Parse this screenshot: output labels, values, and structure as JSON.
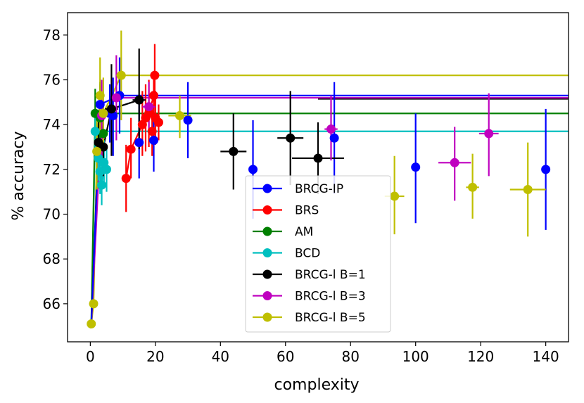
{
  "chart_data": {
    "type": "line",
    "title": "",
    "xlabel": "complexity",
    "ylabel": "% accuracy",
    "xlim": [
      -7,
      147
    ],
    "ylim": [
      64.3,
      79
    ],
    "xticks": [
      0,
      20,
      40,
      60,
      80,
      100,
      120,
      140
    ],
    "yticks": [
      66,
      68,
      70,
      72,
      74,
      76,
      78
    ],
    "grid": false,
    "legend_position": "lower-center",
    "series": [
      {
        "name": "BRCG-IP",
        "color": "#0000ff",
        "points": [
          {
            "x": 3,
            "y": 74.9,
            "ylo": 74.0,
            "yhi": 75.8,
            "xlo": 3,
            "xhi": 3
          },
          {
            "x": 6,
            "y": 74.5,
            "ylo": 73.2,
            "yhi": 75.8,
            "xlo": 6,
            "xhi": 6
          },
          {
            "x": 7,
            "y": 74.4,
            "ylo": 72.6,
            "yhi": 76.1,
            "xlo": 6,
            "xhi": 8
          },
          {
            "x": 9,
            "y": 75.3,
            "ylo": 73.6,
            "yhi": 77.0,
            "xlo": 9,
            "xhi": 9
          },
          {
            "x": 15,
            "y": 73.2,
            "ylo": 71.6,
            "yhi": 74.9,
            "xlo": 15,
            "xhi": 15
          },
          {
            "x": 19.5,
            "y": 73.3,
            "ylo": 71.9,
            "yhi": 74.8,
            "xlo": 18.5,
            "xhi": 20.5
          },
          {
            "x": 30,
            "y": 74.2,
            "ylo": 72.5,
            "yhi": 75.9,
            "xlo": 29,
            "xhi": 31
          },
          {
            "x": 50,
            "y": 72.0,
            "ylo": 69.8,
            "yhi": 74.2,
            "xlo": 49,
            "xhi": 51
          },
          {
            "x": 75,
            "y": 73.4,
            "ylo": 70.9,
            "yhi": 75.9,
            "xlo": 74,
            "xhi": 76
          },
          {
            "x": 100,
            "y": 72.1,
            "ylo": 69.6,
            "yhi": 74.5,
            "xlo": 99,
            "xhi": 101
          },
          {
            "x": 140,
            "y": 72.0,
            "ylo": 69.3,
            "yhi": 74.7,
            "xlo": 139,
            "xhi": 141
          }
        ],
        "asymptote": 75.3
      },
      {
        "name": "BRS",
        "color": "#ff0000",
        "points": [
          {
            "x": 11,
            "y": 71.6,
            "ylo": 70.1,
            "yhi": 73.1,
            "xlo": 10.5,
            "xhi": 11.5
          },
          {
            "x": 12.5,
            "y": 72.9,
            "ylo": 71.6,
            "yhi": 74.3,
            "xlo": 12,
            "xhi": 13
          },
          {
            "x": 16,
            "y": 74.0,
            "ylo": 72.6,
            "yhi": 75.5,
            "xlo": 15,
            "xhi": 17
          },
          {
            "x": 17,
            "y": 74.3,
            "ylo": 72.8,
            "yhi": 75.8,
            "xlo": 16,
            "xhi": 18
          },
          {
            "x": 18,
            "y": 74.5,
            "ylo": 73.0,
            "yhi": 76.0,
            "xlo": 17,
            "xhi": 19
          },
          {
            "x": 19,
            "y": 73.7,
            "ylo": 72.6,
            "yhi": 74.7,
            "xlo": 18,
            "xhi": 20
          },
          {
            "x": 19.5,
            "y": 75.3,
            "ylo": 74.4,
            "yhi": 76.2,
            "xlo": 18.5,
            "xhi": 20.5
          },
          {
            "x": 20,
            "y": 74.3,
            "ylo": 73.1,
            "yhi": 75.5,
            "xlo": 19,
            "xhi": 21
          },
          {
            "x": 21,
            "y": 74.1,
            "ylo": 73.3,
            "yhi": 74.9,
            "xlo": 20,
            "xhi": 22
          },
          {
            "x": 19.8,
            "y": 76.2,
            "ylo": 74.8,
            "yhi": 77.6,
            "xlo": 19,
            "xhi": 20.6
          }
        ],
        "asymptote": null
      },
      {
        "name": "AM",
        "color": "#008000",
        "points": [
          {
            "x": 1.5,
            "y": 74.5,
            "ylo": 73.3,
            "yhi": 75.6,
            "xlo": 1,
            "xhi": 2
          },
          {
            "x": 3,
            "y": 74.3,
            "ylo": 73.0,
            "yhi": 75.9,
            "xlo": 2.5,
            "xhi": 3.5
          },
          {
            "x": 4,
            "y": 73.6,
            "ylo": 72.5,
            "yhi": 74.8,
            "xlo": 3.5,
            "xhi": 4.5
          }
        ],
        "asymptote": 74.5
      },
      {
        "name": "BCD",
        "color": "#00bfbf",
        "points": [
          {
            "x": 1.5,
            "y": 73.7,
            "ylo": 72.9,
            "yhi": 74.5,
            "xlo": 1,
            "xhi": 2
          },
          {
            "x": 2.5,
            "y": 72.5,
            "ylo": 71.5,
            "yhi": 73.5,
            "xlo": 2,
            "xhi": 3
          },
          {
            "x": 3,
            "y": 71.9,
            "ylo": 70.9,
            "yhi": 72.9,
            "xlo": 2.5,
            "xhi": 3.5
          },
          {
            "x": 3.5,
            "y": 71.3,
            "ylo": 70.4,
            "yhi": 72.2,
            "xlo": 3,
            "xhi": 4
          },
          {
            "x": 4.2,
            "y": 72.3,
            "ylo": 71.2,
            "yhi": 73.3,
            "xlo": 3.7,
            "xhi": 4.7
          },
          {
            "x": 5,
            "y": 72.0,
            "ylo": 71.0,
            "yhi": 73.0,
            "xlo": 4.5,
            "xhi": 5.5
          }
        ],
        "asymptote": 73.7
      },
      {
        "name": "BRCG-l B=1",
        "color": "#000000",
        "points": [
          {
            "x": 2.5,
            "y": 73.2,
            "ylo": 72.3,
            "yhi": 74.1,
            "xlo": 2,
            "xhi": 3
          },
          {
            "x": 4,
            "y": 73.0,
            "ylo": 71.7,
            "yhi": 74.3,
            "xlo": 3.5,
            "xhi": 4.5
          },
          {
            "x": 6.5,
            "y": 74.7,
            "ylo": 72.6,
            "yhi": 76.7,
            "xlo": 4.5,
            "xhi": 8.5
          },
          {
            "x": 15,
            "y": 75.1,
            "ylo": 72.9,
            "yhi": 77.4,
            "xlo": 13,
            "xhi": 17
          },
          {
            "x": 44,
            "y": 72.8,
            "ylo": 71.1,
            "yhi": 74.5,
            "xlo": 40,
            "xhi": 48
          },
          {
            "x": 61.5,
            "y": 73.4,
            "ylo": 71.3,
            "yhi": 75.5,
            "xlo": 57.5,
            "xhi": 65.5
          },
          {
            "x": 70,
            "y": 72.5,
            "ylo": 70.9,
            "yhi": 74.1,
            "xlo": 62,
            "xhi": 78
          }
        ],
        "asymptote": 75.15
      },
      {
        "name": "BRCG-l B=3",
        "color": "#bf00bf",
        "points": [
          {
            "x": 3.5,
            "y": 74.4,
            "ylo": 72.6,
            "yhi": 76.0,
            "xlo": 3,
            "xhi": 4
          },
          {
            "x": 8,
            "y": 75.2,
            "ylo": 73.3,
            "yhi": 77.1,
            "xlo": 7,
            "xhi": 9
          },
          {
            "x": 18,
            "y": 74.8,
            "ylo": 73.6,
            "yhi": 75.9,
            "xlo": 16,
            "xhi": 20
          },
          {
            "x": 74,
            "y": 73.8,
            "ylo": 72.4,
            "yhi": 75.3,
            "xlo": 72,
            "xhi": 76
          },
          {
            "x": 112,
            "y": 72.3,
            "ylo": 70.6,
            "yhi": 73.9,
            "xlo": 107,
            "xhi": 117
          },
          {
            "x": 122.5,
            "y": 73.6,
            "ylo": 71.7,
            "yhi": 75.4,
            "xlo": 119.5,
            "xhi": 125.5
          }
        ],
        "asymptote": 75.2
      },
      {
        "name": "BRCG-l B=5",
        "color": "#bfbf00",
        "points": [
          {
            "x": 0.3,
            "y": 65.1,
            "ylo": 65.1,
            "yhi": 65.1,
            "xlo": 0.3,
            "xhi": 0.3
          },
          {
            "x": 1,
            "y": 66.0,
            "ylo": 66.0,
            "yhi": 66.0,
            "xlo": 1,
            "xhi": 1
          },
          {
            "x": 2,
            "y": 72.8,
            "ylo": 71.1,
            "yhi": 74.4,
            "xlo": 1.5,
            "xhi": 2.5
          },
          {
            "x": 3,
            "y": 75.3,
            "ylo": 73.6,
            "yhi": 77.0,
            "xlo": 2.5,
            "xhi": 3.5
          },
          {
            "x": 4,
            "y": 74.5,
            "ylo": 72.8,
            "yhi": 76.1,
            "xlo": 3.5,
            "xhi": 4.5
          },
          {
            "x": 9.5,
            "y": 76.2,
            "ylo": 74.2,
            "yhi": 78.2,
            "xlo": 8,
            "xhi": 11
          },
          {
            "x": 27.5,
            "y": 74.4,
            "ylo": 73.4,
            "yhi": 75.3,
            "xlo": 24,
            "xhi": 31
          },
          {
            "x": 93.5,
            "y": 70.8,
            "ylo": 69.1,
            "yhi": 72.6,
            "xlo": 90.5,
            "xhi": 96.5
          },
          {
            "x": 117.5,
            "y": 71.2,
            "ylo": 69.8,
            "yhi": 72.7,
            "xlo": 115.5,
            "xhi": 119.5
          },
          {
            "x": 134.5,
            "y": 71.1,
            "ylo": 69.0,
            "yhi": 73.2,
            "xlo": 129,
            "xhi": 140
          }
        ],
        "asymptote": 76.2
      }
    ],
    "lines": [
      {
        "series": "BRCG-l B=5",
        "x": [
          0.3,
          1,
          2,
          3,
          4,
          9.5
        ],
        "y": [
          65.1,
          66.0,
          72.8,
          75.3,
          74.5,
          76.2
        ]
      },
      {
        "series": "BCD",
        "x": [
          0.3,
          1.5,
          2.5,
          3,
          3.5,
          4.2,
          5
        ],
        "y": [
          65.1,
          73.7,
          72.5,
          71.9,
          71.3,
          72.3,
          72.0
        ]
      },
      {
        "series": "AM",
        "x": [
          0.3,
          1.5,
          3,
          4
        ],
        "y": [
          65.1,
          74.5,
          74.3,
          73.6
        ]
      },
      {
        "series": "BRCG-l B=1",
        "x": [
          0.3,
          2.5,
          4,
          6.5,
          15
        ],
        "y": [
          65.1,
          73.2,
          73.0,
          74.7,
          75.1
        ]
      },
      {
        "series": "BRCG-l B=3",
        "x": [
          0.3,
          3.5,
          8
        ],
        "y": [
          65.1,
          74.4,
          75.2
        ]
      },
      {
        "series": "BRCG-IP",
        "x": [
          0.3,
          3,
          9
        ],
        "y": [
          65.1,
          74.9,
          75.3
        ]
      },
      {
        "series": "BRS",
        "x": [
          11,
          12.5,
          16,
          17,
          18,
          19.5,
          19.8
        ],
        "y": [
          71.6,
          72.9,
          74.0,
          74.3,
          74.5,
          75.3,
          76.2
        ]
      }
    ]
  }
}
